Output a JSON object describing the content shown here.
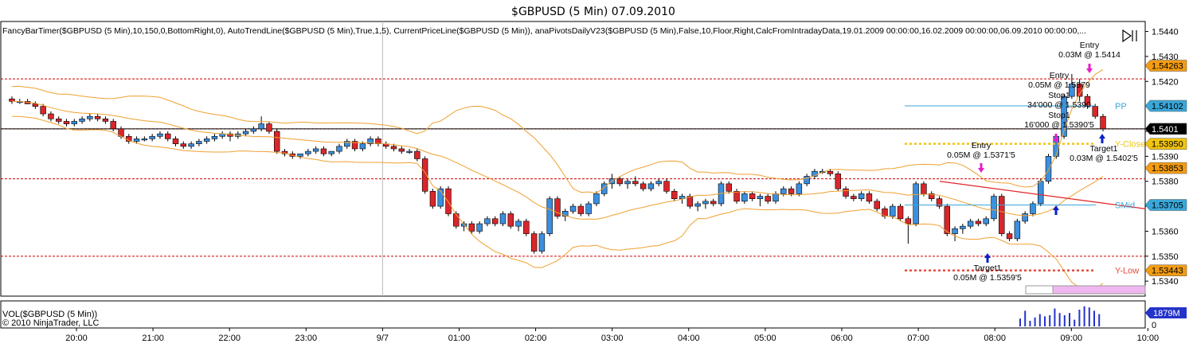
{
  "chart_data": {
    "type": "candlestick",
    "title": "$GBPUSD (5 Min)  07.09.2010",
    "indicator_line": "FancyBarTimer($GBPUSD (5 Min),10,150,0,BottomRight,0), AutoTrendLine($GBPUSD (5 Min),True,1,5), CurrentPriceLine($GBPUSD (5 Min)), anaPivotsDailyV23($GBPUSD (5 Min),False,10,Floor,Right,CalcFromIntradayData,19.01.2009 00:00:00,16.02.2009 00:00:00,06.09.2010 00:00:00,...",
    "ylim": [
      1.5334,
      1.5444
    ],
    "yticks": [
      "1.5440",
      "1.5430",
      "1.5420",
      "1.5410",
      "1.5400",
      "1.5390",
      "1.5380",
      "1.5370",
      "1.5360",
      "1.5350",
      "1.5340"
    ],
    "xticks": [
      "20:00",
      "21:00",
      "22:00",
      "23:00",
      "9/7",
      "01:00",
      "02:00",
      "03:00",
      "04:00",
      "05:00",
      "06:00",
      "07:00",
      "08:00",
      "09:00",
      "10:00"
    ],
    "session_divider_label": "9/7",
    "price_tags": [
      {
        "label": "1.54263",
        "value": 1.54263,
        "color": "#f39c12"
      },
      {
        "label": "1.54102",
        "value": 1.54102,
        "color": "#3aa7d9"
      },
      {
        "label": "1.5401",
        "value": 1.5401,
        "color": "#000000"
      },
      {
        "label": "1.53950",
        "value": 1.5395,
        "color": "#f1c40f"
      },
      {
        "label": "1.53853",
        "value": 1.53853,
        "color": "#f39c12"
      },
      {
        "label": "1.53705",
        "value": 1.53705,
        "color": "#3aa7d9"
      },
      {
        "label": "1.53443",
        "value": 1.53443,
        "color": "#f39c12"
      }
    ],
    "pivot_lines": [
      {
        "label": "PP",
        "value": 1.54102,
        "color": "#3aa7d9"
      },
      {
        "label": "Y-Close",
        "value": 1.5395,
        "color": "#f1c40f"
      },
      {
        "label": "SMid",
        "value": 1.53705,
        "color": "#3aa7d9"
      },
      {
        "label": "Y-Low",
        "value": 1.53443,
        "color": "#e74c3c"
      }
    ],
    "horizontal_levels": [
      1.5421,
      1.5401,
      1.5381,
      1.535
    ],
    "current_price": 1.5401,
    "annotations": [
      {
        "lines": [
          "Entry",
          "0.03M @ 1.5414"
        ]
      },
      {
        "lines": [
          "Entry",
          "0.05M @ 1.5379"
        ]
      },
      {
        "lines": [
          "Stop1",
          "34'000 @ 1.5390"
        ]
      },
      {
        "lines": [
          "Stop1",
          "16'000 @ 1.5390'5"
        ]
      },
      {
        "lines": [
          "Entry",
          "0.05M @ 1.5371'5"
        ]
      },
      {
        "lines": [
          "Target1",
          "0.03M @ 1.5402'5"
        ]
      },
      {
        "lines": [
          "Target1",
          "0.05M @ 1.5359'5"
        ]
      }
    ],
    "volume": {
      "label": "VOL($GBPUSD (5 Min))",
      "copyright": "© 2010 NinjaTrader, LLC",
      "tag": "1879M",
      "zero_label": "0",
      "bars": [
        0.35,
        0.7,
        0.25,
        0.4,
        0.55,
        0.45,
        0.5,
        0.8,
        0.6,
        0.5,
        0.6,
        0.3,
        0.75,
        0.9,
        0.85,
        0.7,
        0.55
      ]
    },
    "candles": [
      [
        1.5413,
        1.5414,
        1.5411,
        1.5412
      ],
      [
        1.5412,
        1.5413,
        1.5411,
        1.5412
      ],
      [
        1.5412,
        1.5413,
        1.5411,
        1.5411
      ],
      [
        1.5411,
        1.5412,
        1.5409,
        1.541
      ],
      [
        1.541,
        1.5411,
        1.5406,
        1.5407
      ],
      [
        1.5407,
        1.5408,
        1.5404,
        1.5405
      ],
      [
        1.5405,
        1.5406,
        1.5403,
        1.5404
      ],
      [
        1.5404,
        1.5405,
        1.5402,
        1.5403
      ],
      [
        1.5403,
        1.5405,
        1.5402,
        1.5404
      ],
      [
        1.5404,
        1.5406,
        1.5403,
        1.5405
      ],
      [
        1.5405,
        1.5407,
        1.5404,
        1.5406
      ],
      [
        1.5406,
        1.5407,
        1.5404,
        1.5405
      ],
      [
        1.5405,
        1.5406,
        1.5403,
        1.5404
      ],
      [
        1.5404,
        1.5405,
        1.54,
        1.5401
      ],
      [
        1.5401,
        1.5402,
        1.5397,
        1.5398
      ],
      [
        1.5398,
        1.5399,
        1.5395,
        1.5396
      ],
      [
        1.5396,
        1.5398,
        1.5395,
        1.5397
      ],
      [
        1.5397,
        1.5398,
        1.5396,
        1.5397
      ],
      [
        1.5397,
        1.5399,
        1.5396,
        1.5398
      ],
      [
        1.5398,
        1.54,
        1.5397,
        1.5399
      ],
      [
        1.5399,
        1.54,
        1.5396,
        1.5397
      ],
      [
        1.5397,
        1.5398,
        1.5394,
        1.5395
      ],
      [
        1.5395,
        1.5396,
        1.5393,
        1.5394
      ],
      [
        1.5394,
        1.5396,
        1.5393,
        1.5395
      ],
      [
        1.5395,
        1.5397,
        1.5394,
        1.5396
      ],
      [
        1.5396,
        1.5398,
        1.5395,
        1.5397
      ],
      [
        1.5397,
        1.5399,
        1.5396,
        1.5398
      ],
      [
        1.5398,
        1.54,
        1.5397,
        1.5399
      ],
      [
        1.5399,
        1.54,
        1.5396,
        1.5398
      ],
      [
        1.5398,
        1.54,
        1.5397,
        1.5399
      ],
      [
        1.5399,
        1.5401,
        1.5398,
        1.54
      ],
      [
        1.54,
        1.5402,
        1.5399,
        1.5401
      ],
      [
        1.5401,
        1.5406,
        1.54,
        1.5403
      ],
      [
        1.5403,
        1.5404,
        1.5399,
        1.54
      ],
      [
        1.54,
        1.5401,
        1.5391,
        1.5392
      ],
      [
        1.5392,
        1.5393,
        1.539,
        1.5391
      ],
      [
        1.5391,
        1.5392,
        1.5389,
        1.539
      ],
      [
        1.539,
        1.5391,
        1.5389,
        1.5391
      ],
      [
        1.5391,
        1.5393,
        1.539,
        1.5392
      ],
      [
        1.5392,
        1.5394,
        1.5391,
        1.5393
      ],
      [
        1.5393,
        1.5394,
        1.539,
        1.5391
      ],
      [
        1.5391,
        1.5392,
        1.539,
        1.5392
      ],
      [
        1.5392,
        1.5395,
        1.5391,
        1.5394
      ],
      [
        1.5394,
        1.5397,
        1.5393,
        1.5396
      ],
      [
        1.5396,
        1.5397,
        1.5392,
        1.5393
      ],
      [
        1.5393,
        1.5396,
        1.5392,
        1.5395
      ],
      [
        1.5395,
        1.5398,
        1.5394,
        1.5397
      ],
      [
        1.5397,
        1.5398,
        1.5394,
        1.5395
      ],
      [
        1.5395,
        1.5396,
        1.5393,
        1.5394
      ],
      [
        1.5394,
        1.5395,
        1.5392,
        1.5393
      ],
      [
        1.5393,
        1.5394,
        1.5391,
        1.5392
      ],
      [
        1.5392,
        1.5393,
        1.5391,
        1.5392
      ],
      [
        1.5392,
        1.5393,
        1.5388,
        1.5389
      ],
      [
        1.5389,
        1.539,
        1.5375,
        1.5376
      ],
      [
        1.5376,
        1.5377,
        1.5369,
        1.537
      ],
      [
        1.537,
        1.5378,
        1.5369,
        1.5377
      ],
      [
        1.5377,
        1.5378,
        1.5366,
        1.5367
      ],
      [
        1.5367,
        1.5368,
        1.5361,
        1.5362
      ],
      [
        1.5362,
        1.5364,
        1.536,
        1.5363
      ],
      [
        1.5363,
        1.5364,
        1.5359,
        1.536
      ],
      [
        1.536,
        1.5364,
        1.5359,
        1.5363
      ],
      [
        1.5363,
        1.5366,
        1.5362,
        1.5365
      ],
      [
        1.5365,
        1.5366,
        1.5362,
        1.5363
      ],
      [
        1.5363,
        1.5368,
        1.5362,
        1.5367
      ],
      [
        1.5367,
        1.5368,
        1.5361,
        1.5362
      ],
      [
        1.5362,
        1.5365,
        1.536,
        1.5364
      ],
      [
        1.5364,
        1.5365,
        1.5358,
        1.5359
      ],
      [
        1.5359,
        1.536,
        1.5351,
        1.5352
      ],
      [
        1.5352,
        1.536,
        1.5351,
        1.5359
      ],
      [
        1.5359,
        1.5374,
        1.5358,
        1.5373
      ],
      [
        1.5373,
        1.5374,
        1.5365,
        1.5366
      ],
      [
        1.5366,
        1.5369,
        1.5364,
        1.5368
      ],
      [
        1.5368,
        1.5371,
        1.5367,
        1.537
      ],
      [
        1.537,
        1.5371,
        1.5366,
        1.5367
      ],
      [
        1.5367,
        1.5372,
        1.5366,
        1.5371
      ],
      [
        1.5371,
        1.5376,
        1.537,
        1.5375
      ],
      [
        1.5375,
        1.538,
        1.5374,
        1.5379
      ],
      [
        1.5379,
        1.5383,
        1.5377,
        1.5381
      ],
      [
        1.5381,
        1.5382,
        1.5378,
        1.5379
      ],
      [
        1.5379,
        1.5381,
        1.5377,
        1.538
      ],
      [
        1.538,
        1.5382,
        1.5378,
        1.5379
      ],
      [
        1.5379,
        1.538,
        1.5376,
        1.5377
      ],
      [
        1.5377,
        1.538,
        1.5376,
        1.5379
      ],
      [
        1.5379,
        1.5381,
        1.5378,
        1.538
      ],
      [
        1.538,
        1.5381,
        1.5375,
        1.5376
      ],
      [
        1.5376,
        1.5377,
        1.5372,
        1.5373
      ],
      [
        1.5373,
        1.5375,
        1.5371,
        1.5374
      ],
      [
        1.5374,
        1.5375,
        1.5369,
        1.537
      ],
      [
        1.537,
        1.5372,
        1.5368,
        1.5371
      ],
      [
        1.5371,
        1.5373,
        1.5369,
        1.5372
      ],
      [
        1.5372,
        1.5373,
        1.537,
        1.5371
      ],
      [
        1.5371,
        1.538,
        1.537,
        1.5379
      ],
      [
        1.5379,
        1.538,
        1.5375,
        1.5376
      ],
      [
        1.5376,
        1.5377,
        1.5371,
        1.5372
      ],
      [
        1.5372,
        1.5376,
        1.5371,
        1.5375
      ],
      [
        1.5375,
        1.5376,
        1.5372,
        1.5373
      ],
      [
        1.5373,
        1.5375,
        1.537,
        1.5374
      ],
      [
        1.5374,
        1.5375,
        1.5371,
        1.5372
      ],
      [
        1.5372,
        1.5376,
        1.5371,
        1.5375
      ],
      [
        1.5375,
        1.5378,
        1.5374,
        1.5377
      ],
      [
        1.5377,
        1.5378,
        1.5374,
        1.5375
      ],
      [
        1.5375,
        1.538,
        1.5374,
        1.5379
      ],
      [
        1.5379,
        1.5383,
        1.5378,
        1.5382
      ],
      [
        1.5382,
        1.5385,
        1.5381,
        1.5384
      ],
      [
        1.5384,
        1.5385,
        1.5383,
        1.5384
      ],
      [
        1.5384,
        1.5385,
        1.5382,
        1.5383
      ],
      [
        1.5383,
        1.5384,
        1.5376,
        1.5377
      ],
      [
        1.5377,
        1.5378,
        1.5373,
        1.5374
      ],
      [
        1.5374,
        1.5375,
        1.5372,
        1.5373
      ],
      [
        1.5373,
        1.5376,
        1.5372,
        1.5375
      ],
      [
        1.5375,
        1.5376,
        1.5371,
        1.5372
      ],
      [
        1.5372,
        1.5373,
        1.5368,
        1.5369
      ],
      [
        1.5369,
        1.537,
        1.5365,
        1.5366
      ],
      [
        1.5366,
        1.5371,
        1.5365,
        1.537
      ],
      [
        1.537,
        1.5371,
        1.5364,
        1.5365
      ],
      [
        1.5365,
        1.5366,
        1.5355,
        1.5363
      ],
      [
        1.5363,
        1.538,
        1.5362,
        1.5379
      ],
      [
        1.5379,
        1.538,
        1.5374,
        1.5375
      ],
      [
        1.5375,
        1.5376,
        1.5372,
        1.5373
      ],
      [
        1.5373,
        1.5374,
        1.5369,
        1.537
      ],
      [
        1.537,
        1.5371,
        1.5358,
        1.5359
      ],
      [
        1.5359,
        1.5362,
        1.5356,
        1.5361
      ],
      [
        1.5361,
        1.5363,
        1.5359,
        1.5362
      ],
      [
        1.5362,
        1.5365,
        1.5361,
        1.5364
      ],
      [
        1.5364,
        1.5365,
        1.5362,
        1.5363
      ],
      [
        1.5363,
        1.5366,
        1.5362,
        1.5365
      ],
      [
        1.5365,
        1.5375,
        1.5364,
        1.5374
      ],
      [
        1.5374,
        1.5375,
        1.5358,
        1.5359
      ],
      [
        1.5359,
        1.536,
        1.5356,
        1.5357
      ],
      [
        1.5357,
        1.5365,
        1.5356,
        1.5364
      ],
      [
        1.5364,
        1.5368,
        1.5363,
        1.5367
      ],
      [
        1.5367,
        1.5372,
        1.5366,
        1.5371
      ],
      [
        1.5371,
        1.5381,
        1.537,
        1.538
      ],
      [
        1.538,
        1.5391,
        1.5379,
        1.539
      ],
      [
        1.539,
        1.5399,
        1.5389,
        1.5398
      ],
      [
        1.5398,
        1.5415,
        1.5397,
        1.5414
      ],
      [
        1.5414,
        1.5423,
        1.5413,
        1.5419
      ],
      [
        1.5419,
        1.5421,
        1.5412,
        1.5414
      ],
      [
        1.5414,
        1.5415,
        1.5409,
        1.541
      ],
      [
        1.541,
        1.5411,
        1.5405,
        1.5406
      ],
      [
        1.5406,
        1.5407,
        1.54,
        1.5401
      ]
    ]
  }
}
